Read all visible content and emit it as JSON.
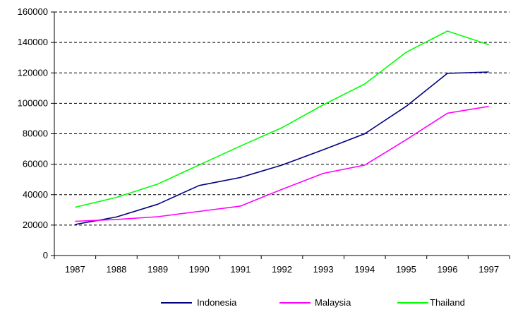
{
  "chart_data": {
    "type": "line",
    "title": "",
    "xlabel": "",
    "ylabel": "",
    "categories": [
      "1987",
      "1988",
      "1989",
      "1990",
      "1991",
      "1992",
      "1993",
      "1994",
      "1995",
      "1996",
      "1997"
    ],
    "ylim": [
      0,
      160000
    ],
    "yticks": [
      "0",
      "20000",
      "40000",
      "60000",
      "80000",
      "100000",
      "120000",
      "140000",
      "160000"
    ],
    "grid": "horizontal-dashed",
    "legend_position": "bottom",
    "series": [
      {
        "name": "Indonesia",
        "color": "#000080",
        "values": [
          20400,
          25300,
          33700,
          46000,
          51300,
          59400,
          69500,
          80000,
          98000,
          119700,
          120600
        ]
      },
      {
        "name": "Malaysia",
        "color": "#ff00ff",
        "values": [
          22500,
          23700,
          25500,
          29000,
          32500,
          43500,
          54000,
          59400,
          76000,
          93500,
          98000
        ]
      },
      {
        "name": "Thailand",
        "color": "#00ff00",
        "values": [
          31700,
          38200,
          47000,
          59500,
          72000,
          84000,
          99000,
          112700,
          133500,
          147500,
          138500
        ]
      }
    ]
  }
}
